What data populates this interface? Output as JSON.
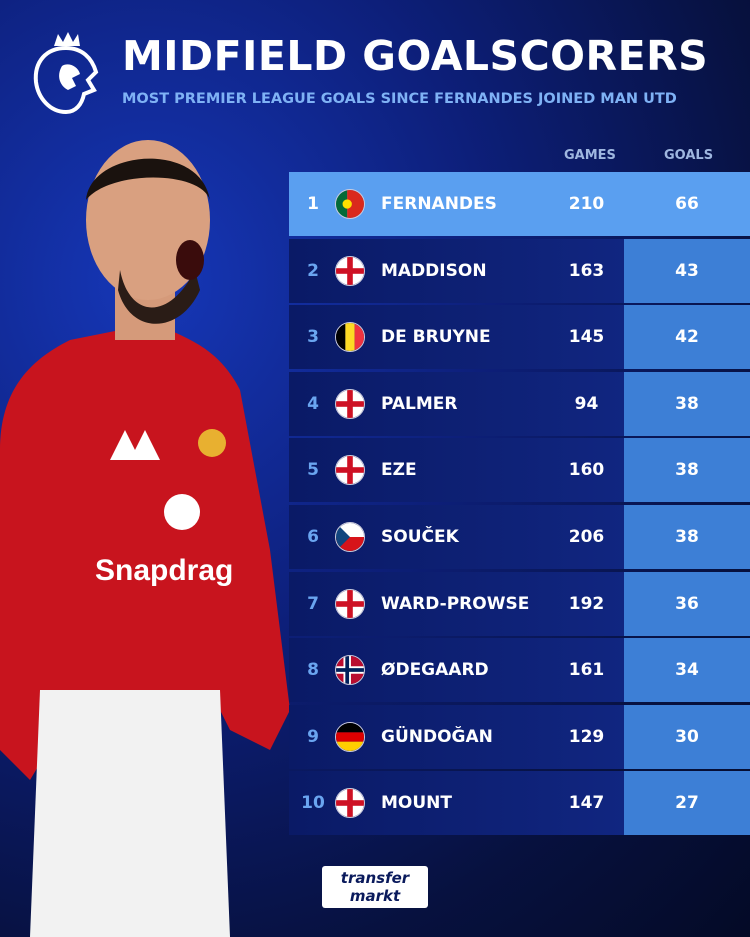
{
  "header": {
    "title": "MIDFIELD GOALSCORERS",
    "subtitle": "MOST PREMIER LEAGUE GOALS SINCE FERNANDES JOINED MAN UTD",
    "logo": "premier-league-lion"
  },
  "table": {
    "columns": [
      "GAMES",
      "GOALS"
    ],
    "rows": [
      {
        "rank": "1",
        "name": "FERNANDES",
        "flag": "portugal",
        "games": "210",
        "goals": "66"
      },
      {
        "rank": "2",
        "name": "MADDISON",
        "flag": "england",
        "games": "163",
        "goals": "43"
      },
      {
        "rank": "3",
        "name": "DE BRUYNE",
        "flag": "belgium",
        "games": "145",
        "goals": "42"
      },
      {
        "rank": "4",
        "name": "PALMER",
        "flag": "england",
        "games": "94",
        "goals": "38"
      },
      {
        "rank": "5",
        "name": "EZE",
        "flag": "england",
        "games": "160",
        "goals": "38"
      },
      {
        "rank": "6",
        "name": "SOUČEK",
        "flag": "czechia",
        "games": "206",
        "goals": "38"
      },
      {
        "rank": "7",
        "name": "WARD-PROWSE",
        "flag": "england",
        "games": "192",
        "goals": "36"
      },
      {
        "rank": "8",
        "name": "ØDEGAARD",
        "flag": "norway",
        "games": "161",
        "goals": "34"
      },
      {
        "rank": "9",
        "name": "GÜNDOĞAN",
        "flag": "germany",
        "games": "129",
        "goals": "30"
      },
      {
        "rank": "10",
        "name": "MOUNT",
        "flag": "england",
        "games": "147",
        "goals": "27"
      }
    ]
  },
  "footer": {
    "brand_line1": "transfer",
    "brand_line2": "markt"
  },
  "colors": {
    "highlight": "#5a9ff0",
    "goals_column": "#3d7fd6",
    "row": "#0a1a66",
    "accent_text": "#7fb2f5"
  }
}
